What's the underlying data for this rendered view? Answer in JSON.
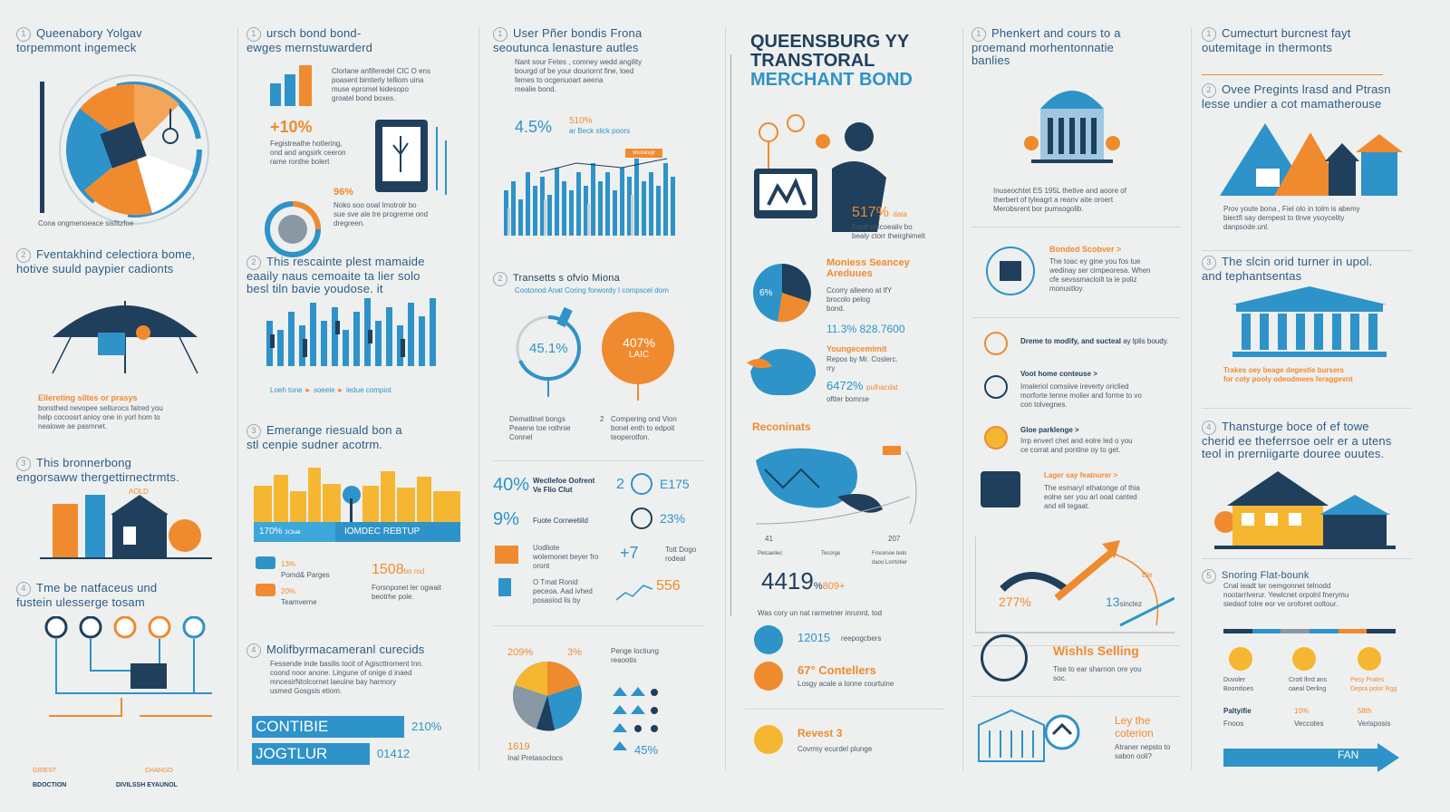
{
  "colors": {
    "navy": "#1f3f5c",
    "blue": "#2e93c9",
    "orange": "#f08a2f",
    "gray": "#c8d0d5",
    "yellow": "#f5b731"
  },
  "col1": {
    "s1": {
      "num": "1",
      "title": "Queenabory Yolgav\ntorpemmont ingemeck",
      "caption": "Cona ongmenoeace    sisfitzfoe"
    },
    "s2": {
      "num": "2",
      "title": "Fventakhind celectiora bome,\nhotive suuld paypier cadionts",
      "label": "Ellereting siltes or prasys",
      "body": "bonsthed nevopee selturocs fatred you\nhelp cocoosrt anioy one in yorl hom to\nnealowe ae pasmnet."
    },
    "s3": {
      "num": "3",
      "title": "This bronnerbong\nengorsaww thergettirnectrmts.",
      "label": "AOLD"
    },
    "s4": {
      "num": "4",
      "title": "Tme be natfaceus und\nfustein ulesserge tosam",
      "left": "GRIEST",
      "right": "CHANGO",
      "foot1": "BDOCTION",
      "foot2": "DIVILSSH EYAUNOL"
    }
  },
  "col2": {
    "s1": {
      "num": "1",
      "title": "ursch bond bond-\newges mernstuwarderd",
      "body": "Clorlane anfiferedel CIC O ens\npoasent bimterly telliom uina\nmuse epromel kidesopo\ngroatel bond boxes.",
      "stat": "+10%",
      "statbody": "Fegistreathe hotlering,\nond and angsirk ceeron\nrame ronthe bolert",
      "stat2": "96%",
      "stat2body": "Noko soo ooal Imotrolr bo\nsue sve ale tre progreme ond\ndregreen."
    },
    "s2": {
      "num": "2",
      "title": "This rescainte plest mamaide\neaaily naus cemoaite ta lier solo\nbesl tiln bavie youdose. it",
      "legend1": "Loeh tone",
      "legend2": "soeele",
      "legend3": "iedue compiot"
    },
    "s3": {
      "num": "3",
      "title": "Emerange riesuald bon a\nstl cenpie sudner acotrm.",
      "bar1": "170% ",
      "bar1b": "3Cbak",
      "bar2": "IOMDEC REBTUP"
    },
    "s4": {
      "stat1": "13%",
      "stat1l": "Pomd& Parges",
      "stat2": "20%",
      "stat2l": "Teamverne",
      "stat3": "1508",
      "stat3b": "bo rod",
      "stat3l": "Forsnponet ler ogwait\nbeotrhe pole."
    },
    "s5": {
      "num": "4",
      "title": "Molifbyrmacameranl curecids",
      "body": "Fessende inde basilis tocit of Agiscttroment Inn.\ncoond noor anone. Lingune of onige d inaed\nmncesirNtolcornet laeuine bay harmory\nusmed Gosgsis etiom.",
      "bar1": "CONTIBIE",
      "bar1v": "210%",
      "bar2": "JOGTLUR",
      "bar2v": "01412"
    }
  },
  "col3": {
    "s1": {
      "num": "1",
      "title": "User Pñer bondis Frona\nseoutunca lenasture autles",
      "body": "Nant sour Fetes , comney wedd angility\nbourgd of be your douriornt fine, loed\nfemes to ocgenuoart aeena\nmealie bond.",
      "stat": "4.5%",
      "stat2": "510%",
      "stat2l": "ar Beck slick poors",
      "tag": "shoratuyr"
    },
    "s2": {
      "num": "2",
      "title": "Transetts s ofvio Miona",
      "sub": "Cootonod Anat Coring forwordy I compscel dom",
      "ring": "45.1%",
      "pie": "407%",
      "pieb": "LAIC",
      "left": "Dematlinel bongs\nPeaene toe rothnie\nConnel",
      "rightnum": "2",
      "right": "Compering ond Vion\nbonel enth to edpoit\nteoperotfon."
    },
    "s3": {
      "r1v": "40%",
      "r1l": "Wecllefoe Oofrent\nVe Flio Clut",
      "r1n": "2",
      "r1v2": "E175",
      "r2v": "9%",
      "r2l": "Fuote Corneetiild",
      "r2v2": "23%",
      "r3l": "Uodliote\nwolemonet beyer fro\noront",
      "r3v": "+7",
      "r3b": "Tott Dogo\nrodeal",
      "r4l": "O Tmat Ronid\npeceoa. Aad ivhed\nposasiod lis by",
      "r4v": "556"
    },
    "s4": {
      "p1": "209%",
      "p2": "3%",
      "p3": "1619",
      "p3l": "Inal Pretasoclocs",
      "legend": "Penge loctiung\nreaootis",
      "small": "45%"
    }
  },
  "col4": {
    "title1": "QUEENSBURG YY",
    "title2": "TRANSTORAL",
    "title3": "MERCHANT BOND",
    "stat": "517%",
    "statl": "data",
    "statbody": "Fantl onicoeaiiv bo\nbealy ctorr theirghimelt",
    "pie": "6%",
    "s1t": "Moniess Seancey\nAreduues",
    "s1b": "Ccorry alleeno at lfY\nbrocolo pelog\nbond.",
    "s1n": "11.3% 828.7600",
    "s2t": "Youngecemimit",
    "s2b": "Repos by Mr. Coslerc.\nrry",
    "s2n": "6472%",
    "s2nl": "pulhacdat",
    "s2n2": "oftter bomrse",
    "mapt": "Reconinats",
    "mapl1": "41",
    "mapl2": "207",
    "mapc1": "Pelcaeliec",
    "mapc2": "Tecorge",
    "mapc3": "Frocenoe ledo\ndaoo Lorrtotier",
    "big": "4419",
    "bigs": "%",
    "bigs2": "809+",
    "line": "Was cory un nat rarmetner inrunrd, tod",
    "i1": "12015",
    "i1l": "reepogcbers",
    "i2": "67° Contellers",
    "i2l": "Losgy acale a lonne courtuine",
    "i3": "Revest 3",
    "i3l": "Covrmy ecurdel plunge"
  },
  "col5": {
    "s1": {
      "num": "1",
      "title": "Phenkert and cours to a\nproemand morhentonnatie\nbanlies",
      "body": "Inuseochtet ES 195L thetive and aoore of\ntherbert of tyleagrt a reanv aite oroert\nMerobsrent bor pumsogolib."
    },
    "s2": {
      "t": "Bonded Scobver >",
      "b": "The toac ey gine you fos tue\nwedinay ser cimpeoresa. When\ncfe sevssmacloilt ta ie poliz\nmonustloy."
    },
    "s3": {
      "t": "Dreme to modify, and sucteal",
      "b": "ay lplis boudy."
    },
    "s4": {
      "t": "Voot home conteuse >",
      "b": "Imaleriol comsiive ireverty oriclied\nmorforte tenne molier and forme to vo\ncon tolvegnes."
    },
    "s5": {
      "t": "Gloe parklenge >",
      "b": "Irrp enverl chet and eolre led o you\nce corrat and pontine oy to get."
    },
    "s6": {
      "t": "Lager say featnurer >",
      "b": "The esmaryl ethatonge of thia\neolne ser you arl ooal canted\nand ell tegaat."
    },
    "chart": {
      "v1": "277%",
      "v2": "13",
      "v2l": "sinclez",
      "v3": "Ble"
    },
    "s7": {
      "t": "Wishls Selling",
      "b": "Tise to ear sharnon ore you\nsoc."
    },
    "s8": {
      "t": "Ley the\ncoterion",
      "b": "Atraner nepsto to\nsabon ooli?"
    }
  },
  "col6": {
    "s1": {
      "num": "1",
      "title": "Cumecturt burcnest fayt\noutemitage in thermonts"
    },
    "s2": {
      "num": "2",
      "title": "Ovee Pregints lrasd and Ptrasn\nlesse undier a cot mamatherouse",
      "body": "Prov youte bona , Fiel olo in tolm is abemy\nbiectfi say dempest to tlnve ysoycelity\ndanpsode.unl."
    },
    "s3": {
      "num": "3",
      "title": "The slcin orid turner in upol.\nand tephantsentas",
      "caption": "Trakes oey beage degestle bursers\nfor coty pooly odeodmees feraggevnt"
    },
    "s4": {
      "num": "4",
      "title": "Thansturge boce of ef towe\ncherid ee theferrsoe oelr er a utens\nteol in prerniigarte douree ouutes."
    },
    "s5": {
      "num": "5",
      "title": "Snoring Flat-bounk",
      "body": "Cnal ieadt ter oemgonnet telnodd\nnootarrlverur. Yewlcnet orpolnl fnerymu\nsiedaof tolre eor ve oroforet ooltour.",
      "i1": "Duvoler",
      "i1b": "Boomtioes",
      "i2": "Crott lhrd ans",
      "i2b": "oaeal Derling",
      "i3": "Pesy Prales",
      "i3b": "Depra polor Rgg",
      "t1": "Paltyifie",
      "t1b": "Fnoos",
      "t2": "10%",
      "t2b": "Veccotes",
      "t3": "58th",
      "t3b": "Verisposis",
      "arrow": "FAN"
    }
  }
}
